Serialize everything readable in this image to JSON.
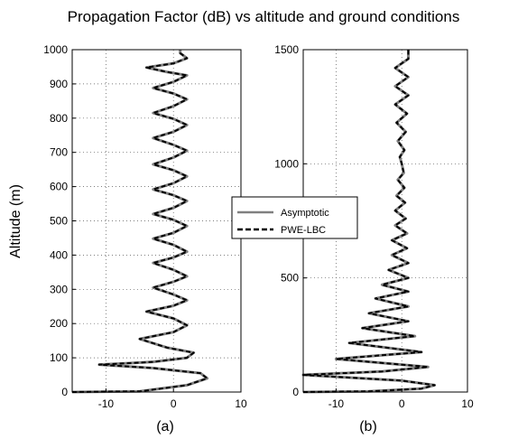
{
  "figure": {
    "title": "Propagation Factor (dB) vs altitude and ground conditions",
    "ylabel": "Altitude (m)"
  },
  "legend": {
    "entries": [
      {
        "name": "Asymptotic",
        "color": "#808080",
        "style": "solid"
      },
      {
        "name": "PWE-LBC",
        "color": "#000000",
        "style": "dashed"
      }
    ]
  },
  "chart_data": [
    {
      "type": "line",
      "subplot_label": "(a)",
      "xlim": [
        -15,
        10
      ],
      "ylim": [
        0,
        1000
      ],
      "xticks": [
        -10,
        0,
        10
      ],
      "yticks": [
        0,
        100,
        200,
        300,
        400,
        500,
        600,
        700,
        800,
        900,
        1000
      ],
      "grid": true,
      "series": [
        {
          "name": "Asymptotic",
          "points": [
            [
              -15,
              0
            ],
            [
              -5,
              2
            ],
            [
              2,
              20
            ],
            [
              5,
              40
            ],
            [
              4,
              55
            ],
            [
              -3,
              70
            ],
            [
              -11,
              80
            ],
            [
              -3,
              88
            ],
            [
              2,
              100
            ],
            [
              3,
              115
            ],
            [
              -1,
              130
            ],
            [
              -5,
              155
            ],
            [
              0,
              175
            ],
            [
              2,
              195
            ],
            [
              0,
              215
            ],
            [
              -4,
              235
            ],
            [
              0,
              252
            ],
            [
              2,
              268
            ],
            [
              0,
              285
            ],
            [
              -3,
              305
            ],
            [
              0,
              322
            ],
            [
              2,
              338
            ],
            [
              0,
              357
            ],
            [
              -3,
              377
            ],
            [
              0,
              393
            ],
            [
              2,
              410
            ],
            [
              0,
              430
            ],
            [
              -3,
              448
            ],
            [
              0,
              465
            ],
            [
              2,
              485
            ],
            [
              0,
              503
            ],
            [
              -3,
              520
            ],
            [
              0,
              538
            ],
            [
              2,
              558
            ],
            [
              0,
              575
            ],
            [
              -3,
              592
            ],
            [
              0,
              610
            ],
            [
              2,
              630
            ],
            [
              0,
              648
            ],
            [
              -3,
              665
            ],
            [
              0,
              685
            ],
            [
              2,
              705
            ],
            [
              0,
              722
            ],
            [
              -3,
              742
            ],
            [
              0,
              760
            ],
            [
              2,
              780
            ],
            [
              0,
              798
            ],
            [
              -3,
              815
            ],
            [
              0,
              835
            ],
            [
              2,
              855
            ],
            [
              0,
              872
            ],
            [
              -3,
              888
            ],
            [
              0,
              906
            ],
            [
              2,
              925
            ],
            [
              -1,
              935
            ],
            [
              -4,
              948
            ],
            [
              0,
              960
            ],
            [
              2,
              975
            ],
            [
              1,
              990
            ],
            [
              1,
              1000
            ]
          ]
        },
        {
          "name": "PWE-LBC",
          "points": [
            [
              -15,
              0
            ],
            [
              -5,
              2
            ],
            [
              2,
              20
            ],
            [
              5,
              40
            ],
            [
              4,
              55
            ],
            [
              -3,
              70
            ],
            [
              -11,
              80
            ],
            [
              -3,
              88
            ],
            [
              2,
              100
            ],
            [
              3,
              115
            ],
            [
              -1,
              130
            ],
            [
              -5,
              155
            ],
            [
              0,
              175
            ],
            [
              2,
              195
            ],
            [
              0,
              215
            ],
            [
              -4,
              235
            ],
            [
              0,
              252
            ],
            [
              2,
              268
            ],
            [
              0,
              285
            ],
            [
              -3,
              305
            ],
            [
              0,
              322
            ],
            [
              2,
              338
            ],
            [
              0,
              357
            ],
            [
              -3,
              377
            ],
            [
              0,
              393
            ],
            [
              2,
              410
            ],
            [
              0,
              430
            ],
            [
              -3,
              448
            ],
            [
              0,
              465
            ],
            [
              2,
              485
            ],
            [
              0,
              503
            ],
            [
              -3,
              520
            ],
            [
              0,
              538
            ],
            [
              2,
              558
            ],
            [
              0,
              575
            ],
            [
              -3,
              592
            ],
            [
              0,
              610
            ],
            [
              2,
              630
            ],
            [
              0,
              648
            ],
            [
              -3,
              665
            ],
            [
              0,
              685
            ],
            [
              2,
              705
            ],
            [
              0,
              722
            ],
            [
              -3,
              742
            ],
            [
              0,
              760
            ],
            [
              2,
              780
            ],
            [
              0,
              798
            ],
            [
              -3,
              815
            ],
            [
              0,
              835
            ],
            [
              2,
              855
            ],
            [
              0,
              872
            ],
            [
              -3,
              888
            ],
            [
              0,
              906
            ],
            [
              2,
              925
            ],
            [
              -1,
              935
            ],
            [
              -4,
              948
            ],
            [
              0,
              960
            ],
            [
              2,
              975
            ],
            [
              1,
              990
            ],
            [
              1,
              1000
            ]
          ]
        }
      ]
    },
    {
      "type": "line",
      "subplot_label": "(b)",
      "xlim": [
        -15,
        10
      ],
      "ylim": [
        0,
        1500
      ],
      "xticks": [
        -10,
        0,
        10
      ],
      "yticks": [
        0,
        500,
        1000,
        1500
      ],
      "grid": true,
      "series": [
        {
          "name": "Asymptotic",
          "points": [
            [
              -15,
              0
            ],
            [
              -5,
              3
            ],
            [
              3,
              15
            ],
            [
              5,
              30
            ],
            [
              0,
              50
            ],
            [
              -15,
              75
            ],
            [
              -3,
              90
            ],
            [
              4,
              110
            ],
            [
              -10,
              145
            ],
            [
              3,
              175
            ],
            [
              -8,
              215
            ],
            [
              2,
              245
            ],
            [
              -6,
              280
            ],
            [
              1,
              310
            ],
            [
              -5,
              345
            ],
            [
              1,
              375
            ],
            [
              -4,
              410
            ],
            [
              1,
              440
            ],
            [
              -3,
              470
            ],
            [
              1,
              500
            ],
            [
              -2,
              535
            ],
            [
              1,
              565
            ],
            [
              -1.5,
              600
            ],
            [
              0.8,
              630
            ],
            [
              -1.5,
              665
            ],
            [
              0.8,
              695
            ],
            [
              -1,
              730
            ],
            [
              0.6,
              760
            ],
            [
              -1,
              795
            ],
            [
              0.5,
              830
            ],
            [
              -0.8,
              860
            ],
            [
              0.4,
              895
            ],
            [
              -0.6,
              930
            ],
            [
              0.3,
              960
            ],
            [
              0,
              1000
            ],
            [
              -0.3,
              1030
            ],
            [
              0.4,
              1060
            ],
            [
              -0.6,
              1100
            ],
            [
              0.6,
              1140
            ],
            [
              -0.8,
              1180
            ],
            [
              0.8,
              1220
            ],
            [
              -1,
              1260
            ],
            [
              1,
              1300
            ],
            [
              -1,
              1340
            ],
            [
              1,
              1380
            ],
            [
              -1,
              1420
            ],
            [
              1,
              1460
            ],
            [
              1,
              1500
            ]
          ]
        },
        {
          "name": "PWE-LBC",
          "points": [
            [
              -15,
              0
            ],
            [
              -5,
              3
            ],
            [
              3,
              15
            ],
            [
              5,
              30
            ],
            [
              0,
              50
            ],
            [
              -15,
              75
            ],
            [
              -3,
              90
            ],
            [
              4,
              110
            ],
            [
              -10,
              145
            ],
            [
              3,
              175
            ],
            [
              -8,
              215
            ],
            [
              2,
              245
            ],
            [
              -6,
              280
            ],
            [
              1,
              310
            ],
            [
              -5,
              345
            ],
            [
              1,
              375
            ],
            [
              -4,
              410
            ],
            [
              1,
              440
            ],
            [
              -3,
              470
            ],
            [
              1,
              500
            ],
            [
              -2,
              535
            ],
            [
              1,
              565
            ],
            [
              -1.5,
              600
            ],
            [
              0.8,
              630
            ],
            [
              -1.5,
              665
            ],
            [
              0.8,
              695
            ],
            [
              -1,
              730
            ],
            [
              0.6,
              760
            ],
            [
              -1,
              795
            ],
            [
              0.5,
              830
            ],
            [
              -0.8,
              860
            ],
            [
              0.4,
              895
            ],
            [
              -0.6,
              930
            ],
            [
              0.3,
              960
            ],
            [
              0,
              1000
            ],
            [
              -0.3,
              1030
            ],
            [
              0.4,
              1060
            ],
            [
              -0.6,
              1100
            ],
            [
              0.6,
              1140
            ],
            [
              -0.8,
              1180
            ],
            [
              0.8,
              1220
            ],
            [
              -1,
              1260
            ],
            [
              1,
              1300
            ],
            [
              -1,
              1340
            ],
            [
              1,
              1380
            ],
            [
              -1,
              1420
            ],
            [
              1,
              1460
            ],
            [
              1,
              1500
            ]
          ]
        }
      ]
    }
  ]
}
